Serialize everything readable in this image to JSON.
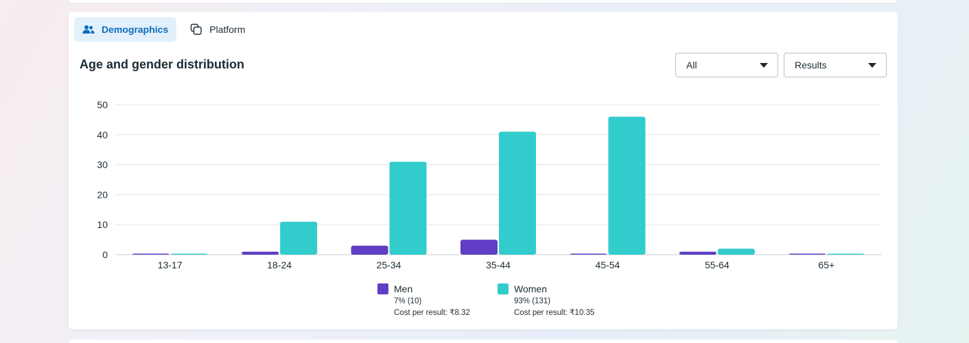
{
  "tabs": [
    {
      "label": "Demographics",
      "icon": "people-icon",
      "active": true
    },
    {
      "label": "Platform",
      "icon": "copy-icon",
      "active": false
    }
  ],
  "title": "Age and gender distribution",
  "filters": {
    "audience": "All",
    "metric": "Results"
  },
  "colors": {
    "men": "#5f3dc4",
    "women": "#33cccc",
    "active_tab_bg": "#e3f0fb",
    "active_tab_text": "#0a6cbd"
  },
  "chart_data": {
    "type": "bar",
    "categories": [
      "13-17",
      "18-24",
      "25-34",
      "35-44",
      "45-54",
      "55-64",
      "65+"
    ],
    "series": [
      {
        "name": "Men",
        "values": [
          0,
          1,
          3,
          5,
          0,
          1,
          0
        ]
      },
      {
        "name": "Women",
        "values": [
          0,
          11,
          31,
          41,
          46,
          2,
          0
        ]
      }
    ],
    "ylim": [
      0,
      50
    ],
    "yticks": [
      0,
      10,
      20,
      30,
      40,
      50
    ],
    "grid": true,
    "legend_position": "bottom"
  },
  "legend": [
    {
      "name": "Men",
      "share": "7% (10)",
      "cost": "Cost per result: ₹8.32"
    },
    {
      "name": "Women",
      "share": "93% (131)",
      "cost": "Cost per result: ₹10.35"
    }
  ]
}
